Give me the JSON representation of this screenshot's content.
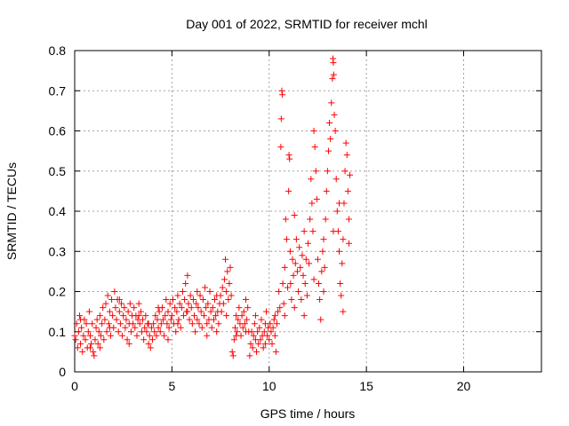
{
  "chart_data": {
    "type": "scatter",
    "title": "Day 001 of 2022, SRMTID for receiver mchl",
    "xlabel": "GPS time / hours",
    "ylabel": "SRMTID / TECUs",
    "xlim": [
      0,
      24
    ],
    "ylim": [
      0,
      0.8
    ],
    "xticks": [
      0,
      5,
      10,
      15,
      20
    ],
    "yticks": [
      0,
      0.1,
      0.2,
      0.3,
      0.4,
      0.5,
      0.6,
      0.7,
      0.8
    ],
    "xtick_labels": [
      "0",
      "5",
      "10",
      "15",
      "20"
    ],
    "ytick_labels": [
      "0",
      "0.1",
      "0.2",
      "0.3",
      "0.4",
      "0.5",
      "0.6",
      "0.7",
      "0.8"
    ],
    "grid": true,
    "marker": "+",
    "color": "#ff0000",
    "series": [
      {
        "name": "mchl",
        "points": [
          [
            0.0,
            0.09
          ],
          [
            0.05,
            0.08
          ],
          [
            0.1,
            0.12
          ],
          [
            0.15,
            0.06
          ],
          [
            0.2,
            0.1
          ],
          [
            0.25,
            0.14
          ],
          [
            0.3,
            0.07
          ],
          [
            0.35,
            0.11
          ],
          [
            0.4,
            0.05
          ],
          [
            0.45,
            0.09
          ],
          [
            0.5,
            0.13
          ],
          [
            0.55,
            0.08
          ],
          [
            0.6,
            0.12
          ],
          [
            0.65,
            0.06
          ],
          [
            0.7,
            0.1
          ],
          [
            0.75,
            0.15
          ],
          [
            0.8,
            0.09
          ],
          [
            0.85,
            0.07
          ],
          [
            0.9,
            0.12
          ],
          [
            0.95,
            0.05
          ],
          [
            1.0,
            0.04
          ],
          [
            1.05,
            0.08
          ],
          [
            1.1,
            0.11
          ],
          [
            1.15,
            0.13
          ],
          [
            1.2,
            0.07
          ],
          [
            1.25,
            0.1
          ],
          [
            1.3,
            0.14
          ],
          [
            1.35,
            0.09
          ],
          [
            1.4,
            0.12
          ],
          [
            1.45,
            0.16
          ],
          [
            1.5,
            0.08
          ],
          [
            1.55,
            0.13
          ],
          [
            1.6,
            0.17
          ],
          [
            1.65,
            0.1
          ],
          [
            1.7,
            0.19
          ],
          [
            1.75,
            0.12
          ],
          [
            1.8,
            0.15
          ],
          [
            1.85,
            0.09
          ],
          [
            1.9,
            0.18
          ],
          [
            1.95,
            0.14
          ],
          [
            2.0,
            0.11
          ],
          [
            2.05,
            0.2
          ],
          [
            2.1,
            0.16
          ],
          [
            2.15,
            0.13
          ],
          [
            2.2,
            0.18
          ],
          [
            2.25,
            0.1
          ],
          [
            2.3,
            0.15
          ],
          [
            2.35,
            0.12
          ],
          [
            2.4,
            0.17
          ],
          [
            2.45,
            0.09
          ],
          [
            2.5,
            0.14
          ],
          [
            2.55,
            0.16
          ],
          [
            2.6,
            0.11
          ],
          [
            2.65,
            0.13
          ],
          [
            2.7,
            0.08
          ],
          [
            2.75,
            0.15
          ],
          [
            2.8,
            0.12
          ],
          [
            2.85,
            0.17
          ],
          [
            2.9,
            0.1
          ],
          [
            2.95,
            0.14
          ],
          [
            3.0,
            0.12
          ],
          [
            3.05,
            0.16
          ],
          [
            3.1,
            0.11
          ],
          [
            3.15,
            0.14
          ],
          [
            3.2,
            0.09
          ],
          [
            3.25,
            0.13
          ],
          [
            3.3,
            0.17
          ],
          [
            3.35,
            0.12
          ],
          [
            3.4,
            0.15
          ],
          [
            3.45,
            0.1
          ],
          [
            3.5,
            0.13
          ],
          [
            3.55,
            0.08
          ],
          [
            3.6,
            0.11
          ],
          [
            3.65,
            0.14
          ],
          [
            3.7,
            0.1
          ],
          [
            3.75,
            0.12
          ],
          [
            3.8,
            0.07
          ],
          [
            3.85,
            0.09
          ],
          [
            3.9,
            0.06
          ],
          [
            3.95,
            0.11
          ],
          [
            4.0,
            0.08
          ],
          [
            4.05,
            0.12
          ],
          [
            4.1,
            0.1
          ],
          [
            4.15,
            0.14
          ],
          [
            4.2,
            0.09
          ],
          [
            4.25,
            0.13
          ],
          [
            4.3,
            0.11
          ],
          [
            4.35,
            0.15
          ],
          [
            4.4,
            0.1
          ],
          [
            4.45,
            0.12
          ],
          [
            4.5,
            0.16
          ],
          [
            4.55,
            0.13
          ],
          [
            4.6,
            0.09
          ],
          [
            4.65,
            0.14
          ],
          [
            4.7,
            0.18
          ],
          [
            4.75,
            0.12
          ],
          [
            4.8,
            0.15
          ],
          [
            4.85,
            0.11
          ],
          [
            4.9,
            0.17
          ],
          [
            4.95,
            0.13
          ],
          [
            5.0,
            0.14
          ],
          [
            5.05,
            0.18
          ],
          [
            5.1,
            0.12
          ],
          [
            5.15,
            0.16
          ],
          [
            5.2,
            0.1
          ],
          [
            5.25,
            0.15
          ],
          [
            5.3,
            0.19
          ],
          [
            5.35,
            0.13
          ],
          [
            5.4,
            0.17
          ],
          [
            5.45,
            0.11
          ],
          [
            5.5,
            0.16
          ],
          [
            5.55,
            0.2
          ],
          [
            5.6,
            0.14
          ],
          [
            5.65,
            0.18
          ],
          [
            5.7,
            0.22
          ],
          [
            5.75,
            0.15
          ],
          [
            5.8,
            0.24
          ],
          [
            5.85,
            0.17
          ],
          [
            5.9,
            0.13
          ],
          [
            5.95,
            0.19
          ],
          [
            6.0,
            0.16
          ],
          [
            6.05,
            0.12
          ],
          [
            6.1,
            0.18
          ],
          [
            6.15,
            0.14
          ],
          [
            6.2,
            0.1
          ],
          [
            6.25,
            0.17
          ],
          [
            6.3,
            0.13
          ],
          [
            6.35,
            0.16
          ],
          [
            6.4,
            0.12
          ],
          [
            6.45,
            0.19
          ],
          [
            6.5,
            0.15
          ],
          [
            6.55,
            0.11
          ],
          [
            6.6,
            0.18
          ],
          [
            6.65,
            0.14
          ],
          [
            6.7,
            0.21
          ],
          [
            6.75,
            0.16
          ],
          [
            6.8,
            0.12
          ],
          [
            6.85,
            0.17
          ],
          [
            6.9,
            0.13
          ],
          [
            6.95,
            0.2
          ],
          [
            7.0,
            0.15
          ],
          [
            7.05,
            0.11
          ],
          [
            7.1,
            0.16
          ],
          [
            7.15,
            0.13
          ],
          [
            7.2,
            0.18
          ],
          [
            7.25,
            0.14
          ],
          [
            7.3,
            0.1
          ],
          [
            7.35,
            0.15
          ],
          [
            7.4,
            0.12
          ],
          [
            7.45,
            0.17
          ],
          [
            7.5,
            0.19
          ],
          [
            7.55,
            0.15
          ],
          [
            7.6,
            0.21
          ],
          [
            7.65,
            0.17
          ],
          [
            7.7,
            0.23
          ],
          [
            7.75,
            0.28
          ],
          [
            7.8,
            0.2
          ],
          [
            7.85,
            0.25
          ],
          [
            7.9,
            0.18
          ],
          [
            7.95,
            0.22
          ],
          [
            8.0,
            0.26
          ],
          [
            8.05,
            0.19
          ],
          [
            8.1,
            0.05
          ],
          [
            8.15,
            0.04
          ],
          [
            8.2,
            0.08
          ],
          [
            8.25,
            0.11
          ],
          [
            8.3,
            0.14
          ],
          [
            8.35,
            0.1
          ],
          [
            8.4,
            0.13
          ],
          [
            8.45,
            0.16
          ],
          [
            8.5,
            0.12
          ],
          [
            8.55,
            0.09
          ],
          [
            8.6,
            0.14
          ],
          [
            8.65,
            0.11
          ],
          [
            8.7,
            0.15
          ],
          [
            8.75,
            0.12
          ],
          [
            8.8,
            0.18
          ],
          [
            8.85,
            0.13
          ],
          [
            8.9,
            0.16
          ],
          [
            8.95,
            0.1
          ],
          [
            9.0,
            0.04
          ],
          [
            9.05,
            0.07
          ],
          [
            9.1,
            0.1
          ],
          [
            9.15,
            0.06
          ],
          [
            9.2,
            0.09
          ],
          [
            9.25,
            0.12
          ],
          [
            9.3,
            0.08
          ],
          [
            9.35,
            0.05
          ],
          [
            9.4,
            0.1
          ],
          [
            9.45,
            0.07
          ],
          [
            9.5,
            0.11
          ],
          [
            9.55,
            0.08
          ],
          [
            9.6,
            0.13
          ],
          [
            9.65,
            0.09
          ],
          [
            9.7,
            0.06
          ],
          [
            9.75,
            0.1
          ],
          [
            9.8,
            0.12
          ],
          [
            9.85,
            0.15
          ],
          [
            9.9,
            0.09
          ],
          [
            9.95,
            0.11
          ],
          [
            10.0,
            0.08
          ],
          [
            10.05,
            0.12
          ],
          [
            10.1,
            0.1
          ],
          [
            10.15,
            0.07
          ],
          [
            10.2,
            0.11
          ],
          [
            10.25,
            0.13
          ],
          [
            10.3,
            0.09
          ],
          [
            10.35,
            0.05
          ],
          [
            10.4,
            0.12
          ],
          [
            10.45,
            0.15
          ],
          [
            10.5,
            0.2
          ],
          [
            10.55,
            0.16
          ],
          [
            10.6,
            0.56
          ],
          [
            10.62,
            0.63
          ],
          [
            10.65,
            0.7
          ],
          [
            10.68,
            0.69
          ],
          [
            10.7,
            0.22
          ],
          [
            10.75,
            0.17
          ],
          [
            10.8,
            0.26
          ],
          [
            10.85,
            0.38
          ],
          [
            10.9,
            0.33
          ],
          [
            10.95,
            0.21
          ],
          [
            11.0,
            0.45
          ],
          [
            11.02,
            0.54
          ],
          [
            11.05,
            0.53
          ],
          [
            11.08,
            0.3
          ],
          [
            11.1,
            0.22
          ],
          [
            11.15,
            0.18
          ],
          [
            11.2,
            0.28
          ],
          [
            11.25,
            0.24
          ],
          [
            11.3,
            0.39
          ],
          [
            11.35,
            0.27
          ],
          [
            11.4,
            0.33
          ],
          [
            11.45,
            0.25
          ],
          [
            11.5,
            0.2
          ],
          [
            11.55,
            0.31
          ],
          [
            11.6,
            0.26
          ],
          [
            11.65,
            0.18
          ],
          [
            11.7,
            0.29
          ],
          [
            11.75,
            0.24
          ],
          [
            11.8,
            0.35
          ],
          [
            11.85,
            0.22
          ],
          [
            11.9,
            0.28
          ],
          [
            11.95,
            0.19
          ],
          [
            12.0,
            0.32
          ],
          [
            12.05,
            0.27
          ],
          [
            12.1,
            0.38
          ],
          [
            12.15,
            0.48
          ],
          [
            12.2,
            0.42
          ],
          [
            12.25,
            0.35
          ],
          [
            12.3,
            0.6
          ],
          [
            12.35,
            0.56
          ],
          [
            12.4,
            0.5
          ],
          [
            12.45,
            0.43
          ],
          [
            12.5,
            0.28
          ],
          [
            12.55,
            0.22
          ],
          [
            12.6,
            0.18
          ],
          [
            12.65,
            0.13
          ],
          [
            12.7,
            0.25
          ],
          [
            12.75,
            0.3
          ],
          [
            12.8,
            0.33
          ],
          [
            12.85,
            0.26
          ],
          [
            12.9,
            0.38
          ],
          [
            12.95,
            0.45
          ],
          [
            13.0,
            0.5
          ],
          [
            13.05,
            0.55
          ],
          [
            13.1,
            0.62
          ],
          [
            13.15,
            0.58
          ],
          [
            13.2,
            0.67
          ],
          [
            13.25,
            0.73
          ],
          [
            13.28,
            0.78
          ],
          [
            13.3,
            0.77
          ],
          [
            13.32,
            0.74
          ],
          [
            13.35,
            0.64
          ],
          [
            13.4,
            0.6
          ],
          [
            13.45,
            0.48
          ],
          [
            13.5,
            0.4
          ],
          [
            13.55,
            0.35
          ],
          [
            13.6,
            0.3
          ],
          [
            13.65,
            0.22
          ],
          [
            13.7,
            0.19
          ],
          [
            13.75,
            0.27
          ],
          [
            13.8,
            0.33
          ],
          [
            13.85,
            0.42
          ],
          [
            13.9,
            0.5
          ],
          [
            13.95,
            0.57
          ],
          [
            14.0,
            0.54
          ],
          [
            14.05,
            0.45
          ],
          [
            14.1,
            0.38
          ],
          [
            14.15,
            0.49
          ],
          [
            0.3,
            0.13
          ],
          [
            0.8,
            0.06
          ],
          [
            1.3,
            0.06
          ],
          [
            1.8,
            0.11
          ],
          [
            2.3,
            0.18
          ],
          [
            2.8,
            0.07
          ],
          [
            3.3,
            0.14
          ],
          [
            3.8,
            0.12
          ],
          [
            4.3,
            0.16
          ],
          [
            4.8,
            0.08
          ],
          [
            5.3,
            0.12
          ],
          [
            5.8,
            0.15
          ],
          [
            6.3,
            0.2
          ],
          [
            6.8,
            0.09
          ],
          [
            7.3,
            0.19
          ],
          [
            7.8,
            0.14
          ],
          [
            8.3,
            0.09
          ],
          [
            8.8,
            0.1
          ],
          [
            9.3,
            0.14
          ],
          [
            9.8,
            0.07
          ],
          [
            10.3,
            0.14
          ],
          [
            10.8,
            0.14
          ],
          [
            11.3,
            0.16
          ],
          [
            11.8,
            0.14
          ],
          [
            12.3,
            0.23
          ],
          [
            12.8,
            0.2
          ],
          [
            13.3,
            0.35
          ],
          [
            13.8,
            0.15
          ],
          [
            14.1,
            0.32
          ],
          [
            13.6,
            0.42
          ]
        ]
      }
    ]
  }
}
